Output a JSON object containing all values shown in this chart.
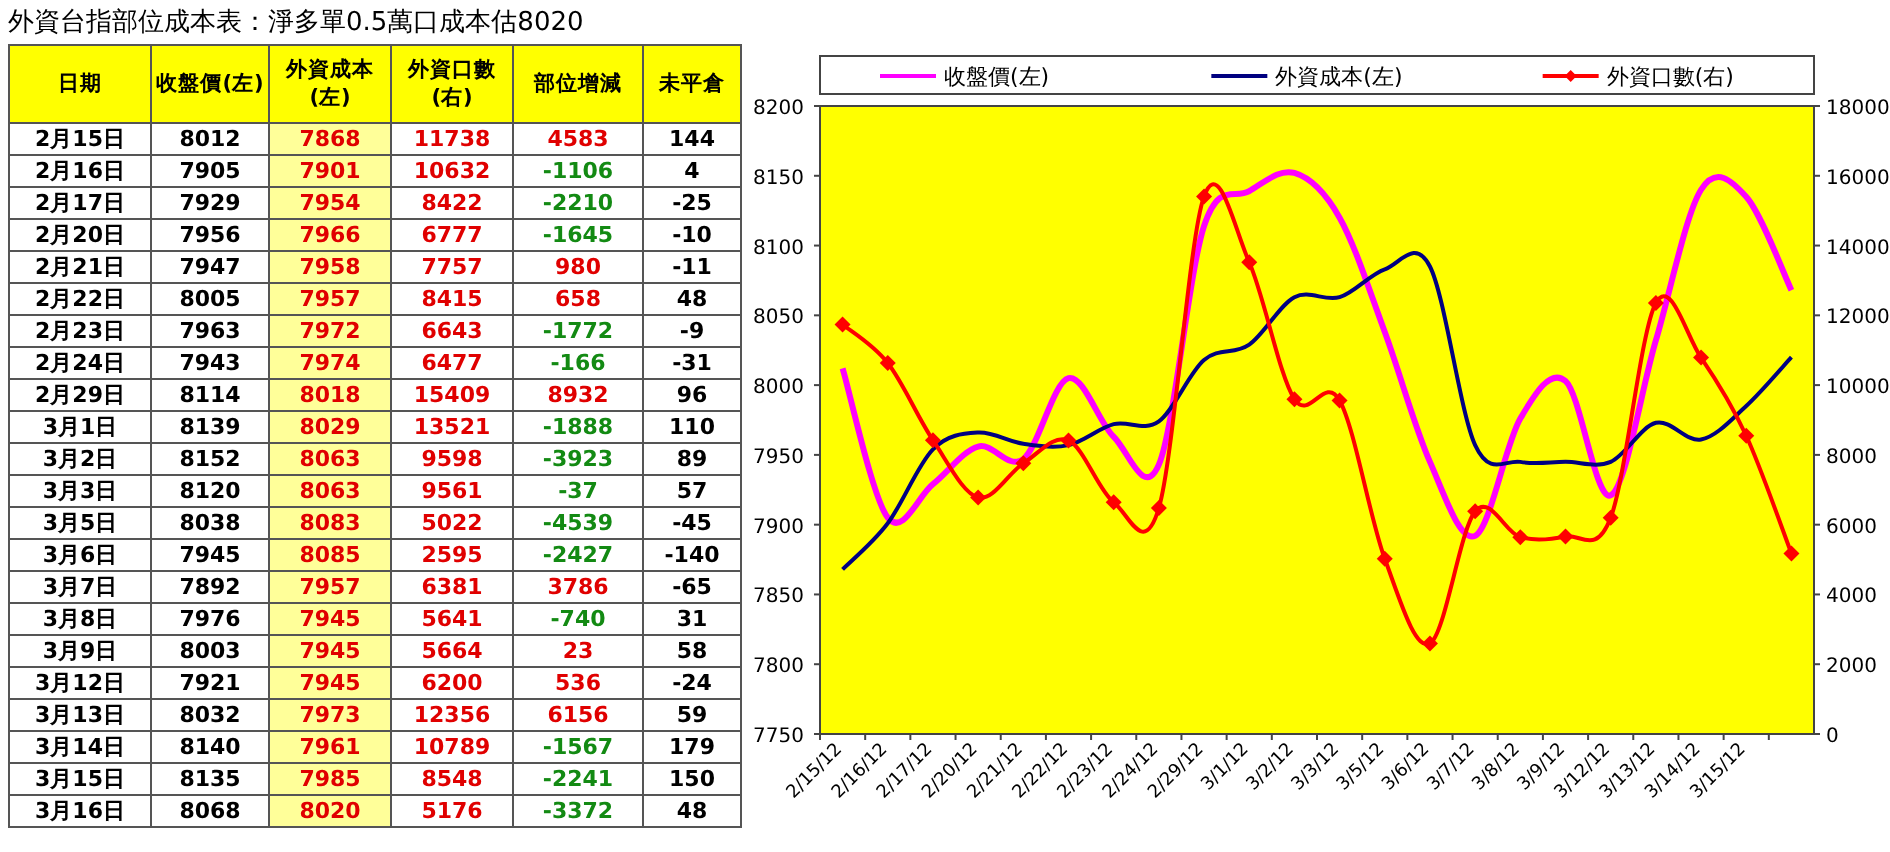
{
  "chart_data": [
    {
      "type": "other",
      "title": "外資台指部位成本表：淨多單0.5萬口成本估8020",
      "legend_title": "日期",
      "data_labels": true,
      "categories": [
        "2月15日",
        "2月16日",
        "2月17日",
        "2月20日",
        "2月21日",
        "2月22日",
        "2月23日",
        "2月24日",
        "2月29日",
        "3月1日",
        "3月2日",
        "3月3日",
        "3月5日",
        "3月6日",
        "3月7日",
        "3月8日",
        "3月9日",
        "3月12日",
        "3月13日",
        "3月14日",
        "3月15日",
        "3月16日"
      ],
      "series": [
        {
          "name": "收盤價(左)",
          "values": [
            8012,
            7905,
            7929,
            7956,
            7947,
            8005,
            7963,
            7943,
            8114,
            8139,
            8152,
            8120,
            8038,
            7945,
            7892,
            7976,
            8003,
            7921,
            8032,
            8140,
            8135,
            8068
          ]
        },
        {
          "name": "外資成本(左)",
          "values": [
            7868,
            7901,
            7954,
            7966,
            7958,
            7957,
            7972,
            7974,
            8018,
            8029,
            8063,
            8063,
            8083,
            8085,
            7957,
            7945,
            7945,
            7945,
            7973,
            7961,
            7985,
            8020
          ]
        },
        {
          "name": "外資口數(右)",
          "values": [
            11738,
            10632,
            8422,
            6777,
            7757,
            8415,
            6643,
            6477,
            15409,
            13521,
            9598,
            9561,
            5022,
            2595,
            6381,
            5641,
            5664,
            6200,
            12356,
            10789,
            8548,
            5176
          ]
        },
        {
          "name": "部位增減",
          "values": [
            4583,
            -1106,
            -2210,
            -1645,
            980,
            658,
            -1772,
            -166,
            8932,
            -1888,
            -3923,
            -37,
            -4539,
            -2427,
            3786,
            -740,
            23,
            536,
            6156,
            -1567,
            -2241,
            -3372
          ]
        },
        {
          "name": "未平倉",
          "values": [
            144,
            4,
            -25,
            -10,
            -11,
            48,
            -9,
            -31,
            96,
            110,
            89,
            57,
            -45,
            -140,
            -65,
            31,
            58,
            -24,
            59,
            179,
            150,
            48
          ]
        }
      ]
    },
    {
      "type": "line",
      "legend": "top",
      "categories": [
        "2/15/12",
        "2/16/12",
        "2/17/12",
        "2/20/12",
        "2/21/12",
        "2/22/12",
        "2/23/12",
        "2/24/12",
        "2/29/12",
        "3/1/12",
        "3/2/12",
        "3/3/12",
        "3/5/12",
        "3/6/12",
        "3/7/12",
        "3/8/12",
        "3/9/12",
        "3/12/12",
        "3/13/12",
        "3/14/12",
        "3/15/12",
        null
      ],
      "ylim": [
        7750,
        8200
      ],
      "yticks": [
        7750,
        7800,
        7850,
        7900,
        7950,
        8000,
        8050,
        8100,
        8150,
        8200
      ],
      "y2lim": [
        0,
        18000
      ],
      "y2ticks": [
        0,
        2000,
        4000,
        6000,
        8000,
        10000,
        12000,
        14000,
        16000,
        18000
      ],
      "series": [
        {
          "name": "收盤價(左)",
          "color": "#ff00ff",
          "marker": "none",
          "values": [
            8012,
            7905,
            7929,
            7956,
            7947,
            8005,
            7963,
            7943,
            8114,
            8139,
            8152,
            8120,
            8038,
            7945,
            7892,
            7976,
            8003,
            7921,
            8032,
            8140,
            8135,
            8068
          ]
        },
        {
          "name": "外資成本(左)",
          "color": "#000080",
          "marker": "none",
          "values": [
            7868,
            7901,
            7954,
            7966,
            7958,
            7957,
            7972,
            7974,
            8018,
            8029,
            8063,
            8063,
            8083,
            8085,
            7957,
            7945,
            7945,
            7945,
            7973,
            7961,
            7985,
            8020
          ]
        },
        {
          "name": "外資口數(右)",
          "color": "#ff0000",
          "marker": "diamond",
          "axis": "y2",
          "values": [
            11738,
            10632,
            8422,
            6777,
            7757,
            8415,
            6643,
            6477,
            15409,
            13521,
            9598,
            9561,
            5022,
            2595,
            6381,
            5641,
            5664,
            6200,
            12356,
            10789,
            8548,
            5176
          ]
        }
      ]
    }
  ]
}
